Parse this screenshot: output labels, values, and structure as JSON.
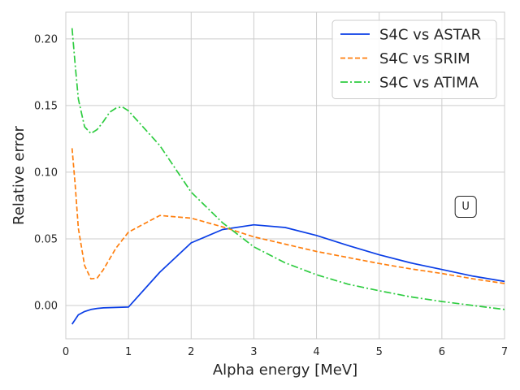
{
  "chart_data": {
    "type": "line",
    "title": "",
    "xlabel": "Alpha energy [MeV]",
    "ylabel": "Relative  error",
    "xlim": [
      0,
      7
    ],
    "ylim": [
      -0.025,
      0.22
    ],
    "xticks": [
      0,
      1,
      2,
      3,
      4,
      5,
      6,
      7
    ],
    "xtick_labels": [
      "0",
      "1",
      "2",
      "3",
      "4",
      "5",
      "6",
      "7"
    ],
    "yticks": [
      0.0,
      0.05,
      0.1,
      0.15,
      0.2
    ],
    "ytick_labels": [
      "0.00",
      "0.05",
      "0.10",
      "0.15",
      "0.20"
    ],
    "grid": true,
    "legend_position": "top-right",
    "annotation": "U",
    "annotation_at": [
      6.38,
      0.074
    ],
    "series": [
      {
        "name": "S4C vs ASTAR",
        "color": "#0a3ee6",
        "dash": "solid",
        "x": [
          0.1,
          0.2,
          0.3,
          0.4,
          0.5,
          0.6,
          0.8,
          1.0,
          1.5,
          2.0,
          2.5,
          3.0,
          3.5,
          4.0,
          4.5,
          5.0,
          5.5,
          6.0,
          6.5,
          7.0
        ],
        "y": [
          -0.014,
          -0.007,
          -0.0045,
          -0.003,
          -0.0022,
          -0.0018,
          -0.0015,
          -0.0012,
          0.025,
          0.047,
          0.057,
          0.0605,
          0.0585,
          0.0525,
          0.045,
          0.038,
          0.032,
          0.027,
          0.022,
          0.018
        ]
      },
      {
        "name": "S4C vs SRIM",
        "color": "#ff7f0e",
        "dash": "dashed",
        "x": [
          0.1,
          0.15,
          0.2,
          0.3,
          0.4,
          0.5,
          0.6,
          0.8,
          1.0,
          1.5,
          2.0,
          2.5,
          3.0,
          3.5,
          4.0,
          4.5,
          5.0,
          5.5,
          6.0,
          6.5,
          7.0
        ],
        "y": [
          0.118,
          0.09,
          0.058,
          0.03,
          0.02,
          0.0205,
          0.027,
          0.043,
          0.055,
          0.0675,
          0.0655,
          0.059,
          0.0515,
          0.046,
          0.0405,
          0.036,
          0.0315,
          0.0275,
          0.024,
          0.02,
          0.0165
        ]
      },
      {
        "name": "S4C vs ATIMA",
        "color": "#2ecc40",
        "dash": "dashdot",
        "x": [
          0.1,
          0.15,
          0.2,
          0.3,
          0.4,
          0.5,
          0.6,
          0.7,
          0.8,
          0.9,
          1.0,
          1.5,
          2.0,
          2.5,
          3.0,
          3.5,
          4.0,
          4.5,
          5.0,
          5.5,
          6.0,
          6.5,
          7.0
        ],
        "y": [
          0.208,
          0.18,
          0.155,
          0.134,
          0.129,
          0.132,
          0.138,
          0.145,
          0.148,
          0.149,
          0.146,
          0.12,
          0.085,
          0.062,
          0.044,
          0.032,
          0.023,
          0.016,
          0.011,
          0.0065,
          0.003,
          0.0,
          -0.003
        ]
      }
    ]
  }
}
